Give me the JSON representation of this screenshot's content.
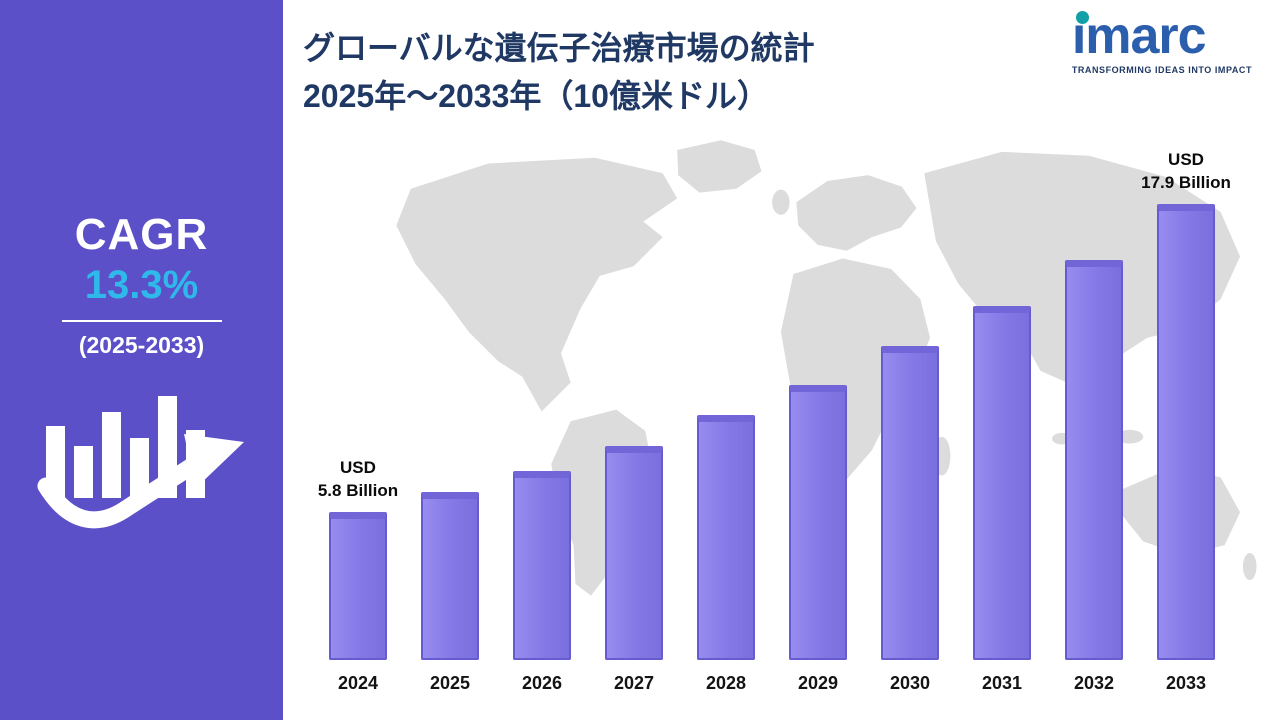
{
  "sidebar": {
    "cagr_label": "CAGR",
    "cagr_value": "13.3%",
    "cagr_period": "(2025-2033)"
  },
  "header": {
    "title_line1": "グローバルな遺伝子治療市場の統計",
    "title_line2": "2025年～2033年（10億米ドル）"
  },
  "logo": {
    "wordmark": "imarc",
    "wordmark_display": "ımarc",
    "tagline": "TRANSFORMING IDEAS INTO IMPACT"
  },
  "chart_data": {
    "type": "bar",
    "title": "グローバルな遺伝子治療市場の統計 2025年～2033年（10億米ドル）",
    "unit": "USD Billion",
    "categories": [
      "2024",
      "2025",
      "2026",
      "2027",
      "2028",
      "2029",
      "2030",
      "2031",
      "2032",
      "2033"
    ],
    "values": [
      5.8,
      6.6,
      7.4,
      8.4,
      9.6,
      10.8,
      12.3,
      13.9,
      15.7,
      17.9
    ],
    "ylim": [
      0,
      18
    ],
    "grid": false,
    "legend": false,
    "annotations": [
      {
        "category": "2024",
        "line1": "USD",
        "line2": "5.8 Billion"
      },
      {
        "category": "2033",
        "line1": "USD",
        "line2": "17.9 Billion"
      }
    ],
    "colors": {
      "bar_face": "#8579e6",
      "bar_edge": "#675bd0",
      "sidebar_bg": "#5b50c8",
      "cagr_accent": "#2fb9ea",
      "title_text": "#203864",
      "map_fill": "#dcdcdc",
      "logo_blue": "#2b5fad",
      "logo_teal": "#12a0a8"
    }
  }
}
